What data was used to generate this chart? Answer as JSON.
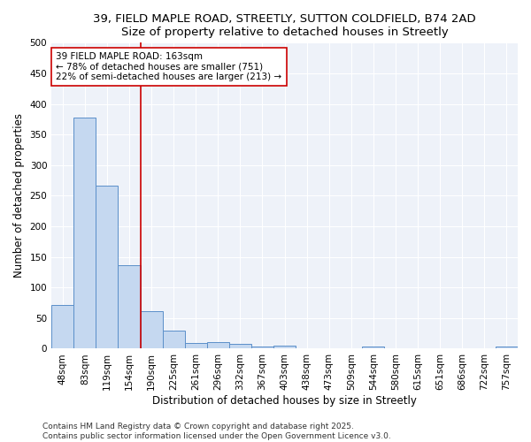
{
  "title1": "39, FIELD MAPLE ROAD, STREETLY, SUTTON COLDFIELD, B74 2AD",
  "title2": "Size of property relative to detached houses in Streetly",
  "xlabel": "Distribution of detached houses by size in Streetly",
  "ylabel": "Number of detached properties",
  "bar_labels": [
    "48sqm",
    "83sqm",
    "119sqm",
    "154sqm",
    "190sqm",
    "225sqm",
    "261sqm",
    "296sqm",
    "332sqm",
    "367sqm",
    "403sqm",
    "438sqm",
    "473sqm",
    "509sqm",
    "544sqm",
    "580sqm",
    "615sqm",
    "651sqm",
    "686sqm",
    "722sqm",
    "757sqm"
  ],
  "bar_values": [
    72,
    377,
    267,
    137,
    62,
    30,
    10,
    11,
    8,
    4,
    5,
    0,
    0,
    0,
    4,
    0,
    0,
    0,
    0,
    0,
    3
  ],
  "bar_color": "#c5d8f0",
  "bar_edge_color": "#5b8fc9",
  "vline_x": 3.5,
  "vline_color": "#cc0000",
  "annotation_line1": "39 FIELD MAPLE ROAD: 163sqm",
  "annotation_line2": "← 78% of detached houses are smaller (751)",
  "annotation_line3": "22% of semi-detached houses are larger (213) →",
  "annotation_box_color": "#ffffff",
  "annotation_box_edge": "#cc0000",
  "ylim": [
    0,
    500
  ],
  "yticks": [
    0,
    50,
    100,
    150,
    200,
    250,
    300,
    350,
    400,
    450,
    500
  ],
  "footer1": "Contains HM Land Registry data © Crown copyright and database right 2025.",
  "footer2": "Contains public sector information licensed under the Open Government Licence v3.0.",
  "bg_color": "#eef2f9",
  "title_fontsize": 9.5,
  "axis_label_fontsize": 8.5,
  "tick_fontsize": 7.5,
  "annotation_fontsize": 7.5,
  "footer_fontsize": 6.5
}
